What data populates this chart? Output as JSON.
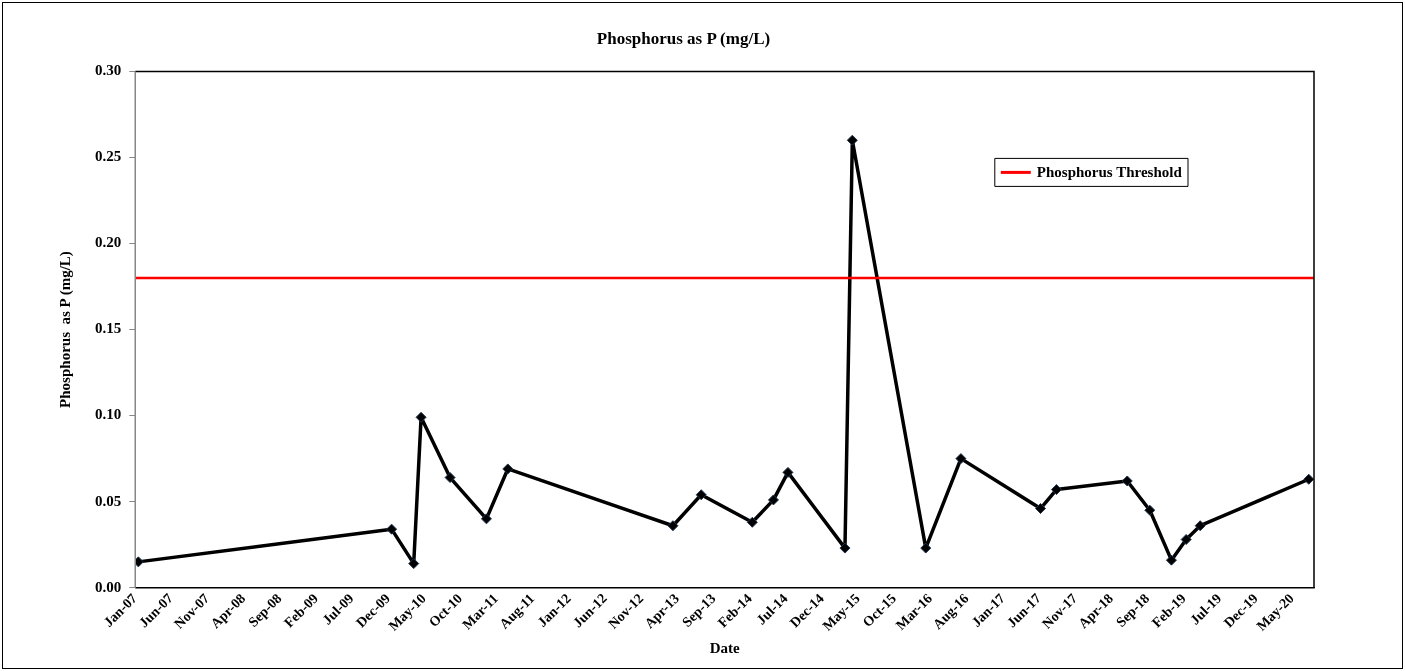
{
  "chart_data": {
    "type": "line",
    "title": "Phosphorus as P (mg/L)",
    "xlabel": "Date",
    "ylabel": "Phosphorus  as P (mg/L)",
    "x": [
      "2007-01-14",
      "2009-12-15",
      "2010-03-18",
      "2010-04-18",
      "2010-08-18",
      "2011-01-18",
      "2011-04-18",
      "2013-03-13",
      "2013-07-10",
      "2014-02-10",
      "2014-05-10",
      "2014-07-10",
      "2015-03-07",
      "2015-04-07",
      "2016-02-10",
      "2016-07-07",
      "2017-06-07",
      "2017-08-13",
      "2018-06-07",
      "2018-09-10",
      "2018-12-10",
      "2019-02-10",
      "2019-04-10",
      "2020-07-10"
    ],
    "series": [
      {
        "color": "#000000",
        "values": [
          0.015,
          0.034,
          0.014,
          0.099,
          0.064,
          0.04,
          0.069,
          0.036,
          0.054,
          0.038,
          0.051,
          0.067,
          0.023,
          0.26,
          0.023,
          0.075,
          0.046,
          0.057,
          0.062,
          0.045,
          0.016,
          0.028,
          0.036,
          0.063
        ]
      }
    ],
    "ref_lines": [
      {
        "axis": "y",
        "value": 0.18,
        "label": "Phosphorus Threshold",
        "color": "#ff0000"
      }
    ],
    "xlim": [
      "2007-01-01",
      "2020-08-01"
    ],
    "xticks": [
      {
        "value": "2007-01-01",
        "label": "Jan-07"
      },
      {
        "value": "2007-06-01",
        "label": "Jun-07"
      },
      {
        "value": "2007-11-01",
        "label": "Nov-07"
      },
      {
        "value": "2008-04-01",
        "label": "Apr-08"
      },
      {
        "value": "2008-09-01",
        "label": "Sep-08"
      },
      {
        "value": "2009-02-01",
        "label": "Feb-09"
      },
      {
        "value": "2009-07-01",
        "label": "Jul-09"
      },
      {
        "value": "2009-12-01",
        "label": "Dec-09"
      },
      {
        "value": "2010-05-01",
        "label": "May-10"
      },
      {
        "value": "2010-10-01",
        "label": "Oct-10"
      },
      {
        "value": "2011-03-01",
        "label": "Mar-11"
      },
      {
        "value": "2011-08-01",
        "label": "Aug-11"
      },
      {
        "value": "2012-01-01",
        "label": "Jan-12"
      },
      {
        "value": "2012-06-01",
        "label": "Jun-12"
      },
      {
        "value": "2012-11-01",
        "label": "Nov-12"
      },
      {
        "value": "2013-04-01",
        "label": "Apr-13"
      },
      {
        "value": "2013-09-01",
        "label": "Sep-13"
      },
      {
        "value": "2014-02-01",
        "label": "Feb-14"
      },
      {
        "value": "2014-07-01",
        "label": "Jul-14"
      },
      {
        "value": "2014-12-01",
        "label": "Dec-14"
      },
      {
        "value": "2015-05-01",
        "label": "May-15"
      },
      {
        "value": "2015-10-01",
        "label": "Oct-15"
      },
      {
        "value": "2016-03-01",
        "label": "Mar-16"
      },
      {
        "value": "2016-08-01",
        "label": "Aug-16"
      },
      {
        "value": "2017-01-01",
        "label": "Jan-17"
      },
      {
        "value": "2017-06-01",
        "label": "Jun-17"
      },
      {
        "value": "2017-11-01",
        "label": "Nov-17"
      },
      {
        "value": "2018-04-01",
        "label": "Apr-18"
      },
      {
        "value": "2018-09-01",
        "label": "Sep-18"
      },
      {
        "value": "2019-02-01",
        "label": "Feb-19"
      },
      {
        "value": "2019-07-01",
        "label": "Jul-19"
      },
      {
        "value": "2019-12-01",
        "label": "Dec-19"
      },
      {
        "value": "2020-05-01",
        "label": "May-20"
      }
    ],
    "ylim": [
      0,
      0.3
    ],
    "yticks": [
      {
        "value": 0,
        "label": "0.00"
      },
      {
        "value": 0.05,
        "label": "0.05"
      },
      {
        "value": 0.1,
        "label": "0.10"
      },
      {
        "value": 0.15,
        "label": "0.15"
      },
      {
        "value": 0.2,
        "label": "0.20"
      },
      {
        "value": 0.25,
        "label": "0.25"
      },
      {
        "value": 0.3,
        "label": "0.30"
      }
    ],
    "grid": false,
    "legend": "top right",
    "marker": "diamond",
    "line_style": "solid"
  }
}
